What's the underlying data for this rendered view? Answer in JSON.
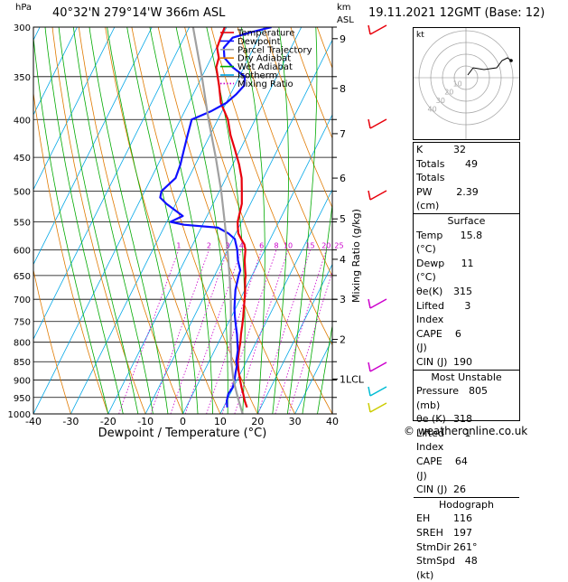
{
  "header": {
    "station": "40°32'N  279°14'W  366m  ASL",
    "datetime": "19.11.2021  12GMT  (Base: 12)",
    "hpa_label": "hPa",
    "km_label": "km",
    "asl_label": "ASL"
  },
  "legend": [
    {
      "name": "Temperature",
      "color": "#e8000b"
    },
    {
      "name": "Dewpoint",
      "color": "#1010ff"
    },
    {
      "name": "Parcel Trajectory",
      "color": "#a0a0a0"
    },
    {
      "name": "Dry Adiabat",
      "color": "#e07a00"
    },
    {
      "name": "Wet Adiabat",
      "color": "#00aa00"
    },
    {
      "name": "Isotherm",
      "color": "#00a6e6"
    },
    {
      "name": "Mixing Ratio",
      "color": "#cc00cc"
    }
  ],
  "chart_data": {
    "type": "line",
    "xlabel": "Dewpoint / Temperature (°C)",
    "ylabel_right": "Mixing Ratio (g/kg)",
    "x_ticks": [
      -40,
      -30,
      -20,
      -10,
      0,
      10,
      20,
      30,
      40
    ],
    "xlim": [
      -40,
      40
    ],
    "pressure_ticks": [
      300,
      350,
      400,
      450,
      500,
      550,
      600,
      650,
      700,
      750,
      800,
      850,
      900,
      950,
      1000
    ],
    "ylim_hpa": [
      1000,
      300
    ],
    "km_ticks": [
      {
        "p": 311,
        "label": "9"
      },
      {
        "p": 363,
        "label": "8"
      },
      {
        "p": 418,
        "label": "7"
      },
      {
        "p": 480,
        "label": "6"
      },
      {
        "p": 545,
        "label": "5"
      },
      {
        "p": 618,
        "label": "4"
      },
      {
        "p": 700,
        "label": "3"
      },
      {
        "p": 793,
        "label": "2"
      },
      {
        "p": 897,
        "label": "1LCL"
      }
    ],
    "mixing_ratio_labels": [
      "1",
      "2",
      "3",
      "4",
      "6",
      "8",
      "10",
      "15",
      "20",
      "25"
    ],
    "mixing_ratios": [
      1,
      2,
      3,
      4,
      6,
      8,
      10,
      15,
      20,
      25
    ],
    "series": [
      {
        "name": "Temperature",
        "color": "#e8000b",
        "p": [
          980,
          960,
          940,
          920,
          900,
          880,
          860,
          850,
          820,
          800,
          780,
          760,
          740,
          720,
          700,
          680,
          660,
          650,
          640,
          620,
          600,
          590,
          580,
          570,
          560,
          550,
          520,
          500,
          480,
          460,
          440,
          420,
          400,
          380,
          360,
          340,
          330,
          320,
          310,
          300
        ],
        "t": [
          16.3,
          14.8,
          13.5,
          12.1,
          10.8,
          9.5,
          8.3,
          7.7,
          6.5,
          5.8,
          4.9,
          4.1,
          3.2,
          2.2,
          1.2,
          0.1,
          -1.2,
          -1.7,
          -2.5,
          -4.0,
          -5.2,
          -6.2,
          -7.8,
          -9.3,
          -10.2,
          -11.0,
          -12.3,
          -14.0,
          -15.8,
          -18.3,
          -21.3,
          -24.5,
          -27.3,
          -31.4,
          -34.2,
          -37.4,
          -38.0,
          -39.8,
          -40.2,
          -40.5
        ]
      },
      {
        "name": "Dewpoint",
        "color": "#1010ff",
        "p": [
          980,
          960,
          940,
          920,
          900,
          880,
          860,
          850,
          820,
          800,
          780,
          760,
          740,
          720,
          700,
          680,
          660,
          650,
          640,
          620,
          600,
          580,
          570,
          560,
          555,
          550,
          540,
          520,
          510,
          500,
          480,
          460,
          440,
          420,
          400,
          390,
          380,
          370,
          360,
          350,
          340,
          330,
          320,
          310,
          305,
          300
        ],
        "t": [
          11.0,
          10.0,
          9.5,
          9.8,
          9.3,
          8.6,
          8.0,
          7.3,
          6.2,
          5.0,
          3.8,
          2.4,
          1.0,
          -0.3,
          -1.4,
          -2.5,
          -3.2,
          -3.6,
          -3.8,
          -5.8,
          -7.4,
          -9.5,
          -12.0,
          -15.5,
          -25.0,
          -29.0,
          -26.5,
          -32.5,
          -35.0,
          -35.5,
          -33.5,
          -34.0,
          -35.0,
          -36.0,
          -37.0,
          -33.0,
          -30.0,
          -28.5,
          -27.5,
          -28.5,
          -33.0,
          -36.5,
          -38.0,
          -37.0,
          -33.0,
          -28.0
        ]
      },
      {
        "name": "Parcel Trajectory",
        "color": "#a0a0a0",
        "p": [
          1000,
          950,
          900,
          850,
          800,
          750,
          700,
          650,
          600,
          550,
          500,
          450,
          400,
          350,
          300
        ],
        "t": [
          16.0,
          12.5,
          9.0,
          6.0,
          3.2,
          0.5,
          -2.5,
          -6.0,
          -10.0,
          -14.5,
          -19.5,
          -25.5,
          -32.5,
          -40.0,
          -49.0
        ]
      }
    ]
  },
  "hodograph": {
    "unit_label": "kt",
    "ring_labels": [
      "10",
      "20",
      "30",
      "40"
    ]
  },
  "indices": [
    {
      "label": "K",
      "value": "32"
    },
    {
      "label": "Totals Totals",
      "value": "49"
    },
    {
      "label": "PW (cm)",
      "value": "2.39"
    }
  ],
  "surface": {
    "title": "Surface",
    "rows": [
      {
        "label": "Temp (°C)",
        "value": "15.8"
      },
      {
        "label": "Dewp (°C)",
        "value": "11"
      },
      {
        "label": "θe(K)",
        "value": "315"
      },
      {
        "label": "Lifted Index",
        "value": "3"
      },
      {
        "label": "CAPE (J)",
        "value": "6"
      },
      {
        "label": "CIN (J)",
        "value": "190"
      }
    ]
  },
  "most_unstable": {
    "title": "Most Unstable",
    "rows": [
      {
        "label": "Pressure (mb)",
        "value": "805"
      },
      {
        "label": "θe (K)",
        "value": "318"
      },
      {
        "label": "Lifted Index",
        "value": "1"
      },
      {
        "label": "CAPE (J)",
        "value": "64"
      },
      {
        "label": "CIN (J)",
        "value": "26"
      }
    ]
  },
  "hodograph_table": {
    "title": "Hodograph",
    "rows": [
      {
        "label": "EH",
        "value": "116"
      },
      {
        "label": "SREH",
        "value": "197"
      },
      {
        "label": "StmDir",
        "value": "261°"
      },
      {
        "label": "StmSpd (kt)",
        "value": "48"
      }
    ]
  },
  "footer": {
    "copyright": "© weatheronline.co.uk"
  }
}
